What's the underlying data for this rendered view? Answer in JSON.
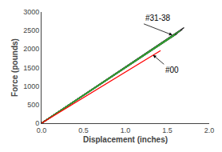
{
  "chart_data": {
    "type": "line",
    "xlabel": "Displacement (inches)",
    "ylabel": "Force (pounds)",
    "xlim": [
      0,
      2
    ],
    "ylim": [
      0,
      3000
    ],
    "xticks": [
      {
        "value": 0,
        "label": "0.0"
      },
      {
        "value": 0.5,
        "label": "0.5"
      },
      {
        "value": 1.0,
        "label": "1.0"
      },
      {
        "value": 1.5,
        "label": "1.5"
      },
      {
        "value": 2.0,
        "label": "2.0"
      }
    ],
    "yticks": [
      0,
      500,
      1000,
      1500,
      2000,
      2500,
      3000
    ],
    "grid": false,
    "series": [
      {
        "x": [
          0,
          1.7
        ],
        "values": [
          0,
          2580
        ],
        "color": "#111111"
      },
      {
        "x": [
          0,
          1.66
        ],
        "values": [
          0,
          2510
        ],
        "color": "#333333"
      },
      {
        "x": [
          0,
          1.65
        ],
        "values": [
          0,
          2490
        ],
        "color": "#222222"
      },
      {
        "x": [
          0,
          1.64
        ],
        "values": [
          0,
          2470
        ],
        "color": "#111111"
      },
      {
        "x": [
          0,
          1.63
        ],
        "values": [
          0,
          2450
        ],
        "color": "#000000"
      },
      {
        "x": [
          0,
          1.62
        ],
        "values": [
          0,
          2430
        ],
        "color": "#222222"
      },
      {
        "x": [
          0,
          1.68
        ],
        "values": [
          0,
          2530
        ],
        "color": "#333333"
      },
      {
        "x": [
          0,
          1.67
        ],
        "values": [
          0,
          2515
        ],
        "color": "#444444"
      },
      {
        "x": [
          0,
          1.61
        ],
        "values": [
          0,
          2410
        ],
        "color": "#111111"
      },
      {
        "x": [
          0,
          1.59
        ],
        "values": [
          0,
          2380
        ],
        "color": "#33aa33"
      },
      {
        "x": [
          0,
          1.655
        ],
        "values": [
          0,
          2500
        ],
        "color": "#33aa33"
      },
      {
        "x": [
          0,
          1.42
        ],
        "values": [
          0,
          1960
        ],
        "color": "#ff0000"
      }
    ],
    "annotations": [
      {
        "text": "#31-38",
        "x": 1.56,
        "y": 2380,
        "text_x": 1.22,
        "text_y": 2680
      },
      {
        "text": "#00",
        "x": 1.33,
        "y": 1840,
        "text_x": 1.46,
        "text_y": 1590
      }
    ]
  }
}
